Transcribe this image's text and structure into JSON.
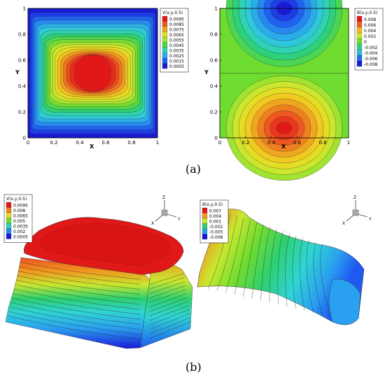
{
  "captions": {
    "a": "(a)",
    "b": "(b)"
  },
  "palette": [
    "#1a1ad6",
    "#1f5af0",
    "#2aa0f0",
    "#30d4d4",
    "#2ed070",
    "#6fdc30",
    "#c8e830",
    "#f0d820",
    "#f09820",
    "#ee5020",
    "#e01818"
  ],
  "chart_data": [
    {
      "type": "heatmap",
      "panel": "a-left",
      "title": "V(x,y,0.5)",
      "xlabel": "X",
      "ylabel": "Y",
      "xlim": [
        0,
        1
      ],
      "ylim": [
        0,
        1
      ],
      "x_ticks": [
        "0",
        "0.2",
        "0.4",
        "0.6",
        "0.8",
        "1"
      ],
      "y_ticks": [
        "0",
        "0.2",
        "0.4",
        "0.6",
        "0.8",
        "1"
      ],
      "legend": {
        "title": "V(x,y,0.5)",
        "labels": [
          "0.0095",
          "0.0085",
          "0.0075",
          "0.0065",
          "0.0055",
          "0.0045",
          "0.0035",
          "0.0025",
          "0.0015",
          "0.0005"
        ]
      },
      "colorbar_range": [
        0,
        0.01
      ],
      "field": "max near center (~0.0095), decreasing to ~0 at all four walls"
    },
    {
      "type": "heatmap",
      "panel": "a-right",
      "title": "B(x,y,0.5)",
      "xlabel": "X",
      "ylabel": "Y",
      "xlim": [
        0,
        1
      ],
      "ylim": [
        0,
        1
      ],
      "x_ticks": [
        "0",
        "0.2",
        "0.4",
        "0.6",
        "0.8",
        "1"
      ],
      "y_ticks": [
        "0",
        "0.2",
        "0.4",
        "0.6",
        "0.8",
        "1"
      ],
      "legend": {
        "title": "B(x,y,0.5)",
        "labels": [
          "0.008",
          "0.006",
          "0.004",
          "0.002",
          "0",
          "-0.002",
          "-0.004",
          "-0.006",
          "-0.008"
        ]
      },
      "colorbar_range": [
        -0.008,
        0.008
      ],
      "field": "positive maximum (~0.008) near bottom center, negative minimum (~-0.008) near top center, 0 along y=0.5"
    },
    {
      "type": "heatmap",
      "panel": "b-left",
      "title": "V(x,y,0.5)",
      "legend": {
        "title": "V(x,y,0.5)",
        "labels": [
          "0.0095",
          "0.008",
          "0.0065",
          "0.005",
          "0.0035",
          "0.002",
          "0.0005"
        ]
      },
      "axes_triad": [
        "Z",
        "X",
        "Y"
      ]
    },
    {
      "type": "heatmap",
      "panel": "b-right",
      "title": "B(x,y,0.5)",
      "legend": {
        "title": "B(x,y,0.5)",
        "labels": [
          "0.007",
          "0.004",
          "0.001",
          "-0.002",
          "-0.005",
          "-0.008"
        ]
      },
      "axes_triad": [
        "Z",
        "X",
        "Y"
      ]
    }
  ]
}
